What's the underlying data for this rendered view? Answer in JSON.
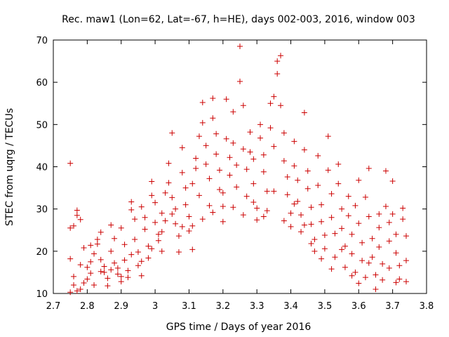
{
  "chart_data": {
    "type": "scatter",
    "title": "Rec. maw1 (Lon=62, Lat=-67, h=HE), days 002-003, 2016, window 003",
    "xlabel": "GPS time / Days of year 2016",
    "ylabel": "STEC from uqrg / TECUs",
    "xlim": [
      2.7,
      3.8
    ],
    "ylim": [
      10,
      70
    ],
    "x_ticks": [
      "2.7",
      "2.8",
      "2.9",
      "3",
      "3.1",
      "3.2",
      "3.3",
      "3.4",
      "3.5",
      "3.6",
      "3.7",
      "3.8"
    ],
    "y_ticks": [
      "10",
      "20",
      "30",
      "40",
      "50",
      "60",
      "70"
    ],
    "marker": "plus",
    "point_color": "#cc0000",
    "grid": false,
    "legend": "none",
    "series": [
      {
        "points": [
          [
            2.75,
            40.8
          ],
          [
            2.75,
            25.5
          ],
          [
            2.76,
            26.0
          ],
          [
            2.77,
            29.7
          ],
          [
            2.77,
            28.5
          ],
          [
            2.78,
            27.5
          ],
          [
            2.79,
            20.8
          ],
          [
            2.75,
            18.2
          ],
          [
            2.76,
            14.0
          ],
          [
            2.76,
            12.0
          ],
          [
            2.77,
            10.6
          ],
          [
            2.75,
            10.3
          ],
          [
            2.78,
            11.0
          ],
          [
            2.79,
            12.5
          ],
          [
            2.8,
            13.4
          ],
          [
            2.8,
            16.2
          ],
          [
            2.81,
            17.5
          ],
          [
            2.81,
            14.8
          ],
          [
            2.82,
            12.0
          ],
          [
            2.82,
            19.4
          ],
          [
            2.83,
            21.7
          ],
          [
            2.83,
            22.8
          ],
          [
            2.84,
            24.5
          ],
          [
            2.84,
            18.0
          ],
          [
            2.85,
            16.4
          ],
          [
            2.85,
            15.0
          ],
          [
            2.86,
            13.6
          ],
          [
            2.86,
            11.8
          ],
          [
            2.87,
            26.2
          ],
          [
            2.87,
            20.0
          ],
          [
            2.88,
            23.0
          ],
          [
            2.88,
            17.2
          ],
          [
            2.89,
            16.0
          ],
          [
            2.89,
            14.6
          ],
          [
            2.9,
            12.8
          ],
          [
            2.9,
            25.5
          ],
          [
            2.91,
            21.6
          ],
          [
            2.91,
            17.9
          ],
          [
            2.92,
            15.4
          ],
          [
            2.92,
            13.8
          ],
          [
            2.93,
            31.7
          ],
          [
            2.93,
            29.8
          ],
          [
            2.94,
            27.6
          ],
          [
            2.94,
            22.8
          ],
          [
            2.95,
            19.8
          ],
          [
            2.95,
            16.6
          ],
          [
            2.96,
            14.2
          ],
          [
            2.96,
            30.5
          ],
          [
            2.97,
            28.0
          ],
          [
            2.97,
            25.2
          ],
          [
            2.98,
            21.2
          ],
          [
            2.98,
            18.4
          ],
          [
            2.99,
            36.5
          ],
          [
            2.99,
            33.2
          ],
          [
            3.0,
            31.5
          ],
          [
            3.0,
            26.8
          ],
          [
            3.01,
            24.0
          ],
          [
            3.01,
            22.5
          ],
          [
            3.02,
            20.0
          ],
          [
            3.02,
            29.0
          ],
          [
            3.03,
            33.8
          ],
          [
            3.03,
            27.2
          ],
          [
            3.04,
            40.8
          ],
          [
            3.04,
            36.2
          ],
          [
            3.05,
            48.0
          ],
          [
            3.05,
            32.7
          ],
          [
            3.06,
            30.0
          ],
          [
            3.06,
            26.5
          ],
          [
            3.07,
            23.6
          ],
          [
            3.07,
            19.8
          ],
          [
            3.08,
            44.5
          ],
          [
            3.08,
            38.6
          ],
          [
            3.09,
            35.0
          ],
          [
            3.09,
            31.0
          ],
          [
            3.1,
            28.2
          ],
          [
            3.1,
            24.8
          ],
          [
            3.11,
            20.4
          ],
          [
            3.11,
            36.0
          ],
          [
            3.12,
            42.0
          ],
          [
            3.12,
            39.6
          ],
          [
            3.13,
            47.2
          ],
          [
            3.13,
            33.2
          ],
          [
            3.14,
            55.2
          ],
          [
            3.14,
            50.4
          ],
          [
            3.15,
            45.0
          ],
          [
            3.15,
            40.6
          ],
          [
            3.16,
            37.2
          ],
          [
            3.16,
            30.8
          ],
          [
            3.17,
            56.2
          ],
          [
            3.17,
            51.5
          ],
          [
            3.18,
            47.8
          ],
          [
            3.18,
            43.0
          ],
          [
            3.19,
            39.2
          ],
          [
            3.19,
            34.6
          ],
          [
            3.2,
            30.6
          ],
          [
            3.2,
            27.0
          ],
          [
            3.21,
            56.0
          ],
          [
            3.21,
            46.6
          ],
          [
            3.22,
            42.2
          ],
          [
            3.22,
            38.0
          ],
          [
            3.23,
            53.0
          ],
          [
            3.23,
            45.6
          ],
          [
            3.24,
            40.4
          ],
          [
            3.24,
            35.2
          ],
          [
            3.25,
            68.5
          ],
          [
            3.25,
            60.2
          ],
          [
            3.26,
            54.5
          ],
          [
            3.26,
            44.2
          ],
          [
            3.27,
            39.4
          ],
          [
            3.27,
            33.0
          ],
          [
            3.28,
            48.2
          ],
          [
            3.28,
            43.5
          ],
          [
            3.29,
            41.8
          ],
          [
            3.29,
            36.0
          ],
          [
            3.3,
            30.2
          ],
          [
            3.3,
            27.4
          ],
          [
            3.31,
            50.0
          ],
          [
            3.31,
            46.8
          ],
          [
            3.32,
            42.8
          ],
          [
            3.32,
            38.8
          ],
          [
            3.33,
            34.2
          ],
          [
            3.33,
            29.6
          ],
          [
            3.34,
            55.0
          ],
          [
            3.34,
            49.2
          ],
          [
            3.35,
            56.6
          ],
          [
            3.35,
            44.8
          ],
          [
            3.36,
            65.0
          ],
          [
            3.36,
            62.0
          ],
          [
            3.37,
            66.3
          ],
          [
            3.37,
            54.5
          ],
          [
            3.38,
            48.0
          ],
          [
            3.38,
            41.4
          ],
          [
            3.39,
            37.6
          ],
          [
            3.39,
            33.4
          ],
          [
            3.4,
            29.0
          ],
          [
            3.4,
            25.8
          ],
          [
            3.41,
            46.0
          ],
          [
            3.41,
            40.2
          ],
          [
            3.42,
            36.8
          ],
          [
            3.42,
            31.8
          ],
          [
            3.43,
            28.6
          ],
          [
            3.43,
            24.6
          ],
          [
            3.44,
            52.8
          ],
          [
            3.44,
            44.0
          ],
          [
            3.45,
            39.0
          ],
          [
            3.45,
            34.8
          ],
          [
            3.46,
            30.4
          ],
          [
            3.46,
            26.4
          ],
          [
            3.47,
            22.8
          ],
          [
            3.47,
            20.0
          ],
          [
            3.48,
            42.6
          ],
          [
            3.48,
            35.6
          ],
          [
            3.49,
            31.0
          ],
          [
            3.49,
            27.0
          ],
          [
            3.5,
            23.8
          ],
          [
            3.5,
            20.6
          ],
          [
            3.51,
            39.2
          ],
          [
            3.51,
            47.2
          ],
          [
            3.52,
            33.6
          ],
          [
            3.52,
            28.0
          ],
          [
            3.53,
            24.2
          ],
          [
            3.53,
            18.6
          ],
          [
            3.54,
            40.6
          ],
          [
            3.54,
            36.0
          ],
          [
            3.55,
            30.0
          ],
          [
            3.55,
            25.4
          ],
          [
            3.56,
            21.2
          ],
          [
            3.56,
            16.2
          ],
          [
            3.57,
            33.0
          ],
          [
            3.57,
            28.4
          ],
          [
            3.58,
            24.0
          ],
          [
            3.58,
            19.4
          ],
          [
            3.59,
            15.0
          ],
          [
            3.59,
            30.8
          ],
          [
            3.6,
            36.8
          ],
          [
            3.6,
            26.6
          ],
          [
            3.61,
            22.0
          ],
          [
            3.61,
            17.8
          ],
          [
            3.62,
            13.8
          ],
          [
            3.62,
            32.8
          ],
          [
            3.63,
            39.6
          ],
          [
            3.63,
            28.2
          ],
          [
            3.64,
            23.0
          ],
          [
            3.64,
            18.6
          ],
          [
            3.65,
            14.4
          ],
          [
            3.65,
            11.0
          ],
          [
            3.66,
            25.6
          ],
          [
            3.66,
            21.0
          ],
          [
            3.67,
            17.0
          ],
          [
            3.67,
            13.2
          ],
          [
            3.68,
            39.0
          ],
          [
            3.68,
            30.6
          ],
          [
            3.69,
            26.8
          ],
          [
            3.69,
            22.4
          ],
          [
            3.7,
            36.6
          ],
          [
            3.7,
            28.8
          ],
          [
            3.71,
            24.0
          ],
          [
            3.71,
            19.6
          ],
          [
            3.72,
            16.6
          ],
          [
            3.72,
            13.4
          ],
          [
            3.73,
            30.2
          ],
          [
            3.73,
            27.6
          ],
          [
            3.74,
            23.6
          ],
          [
            3.74,
            17.8
          ],
          [
            3.74,
            12.8
          ],
          [
            3.71,
            12.6
          ],
          [
            3.69,
            16.0
          ],
          [
            3.66,
            28.8
          ],
          [
            3.63,
            17.2
          ],
          [
            3.6,
            12.4
          ],
          [
            3.58,
            14.2
          ],
          [
            3.55,
            20.4
          ],
          [
            3.52,
            15.8
          ],
          [
            3.49,
            18.2
          ],
          [
            3.46,
            21.8
          ],
          [
            3.44,
            26.2
          ],
          [
            3.41,
            31.2
          ],
          [
            3.38,
            27.2
          ],
          [
            3.35,
            34.2
          ],
          [
            3.32,
            28.2
          ],
          [
            3.29,
            31.6
          ],
          [
            3.26,
            28.6
          ],
          [
            3.23,
            30.4
          ],
          [
            3.2,
            33.8
          ],
          [
            3.17,
            29.2
          ],
          [
            3.14,
            27.6
          ],
          [
            3.11,
            26.0
          ],
          [
            3.08,
            25.8
          ],
          [
            3.05,
            28.8
          ],
          [
            3.02,
            24.6
          ],
          [
            2.99,
            20.6
          ],
          [
            2.96,
            17.6
          ],
          [
            2.93,
            19.2
          ],
          [
            2.9,
            14.0
          ],
          [
            2.87,
            15.6
          ],
          [
            2.84,
            15.2
          ],
          [
            2.81,
            21.4
          ],
          [
            2.78,
            16.8
          ]
        ]
      }
    ]
  }
}
